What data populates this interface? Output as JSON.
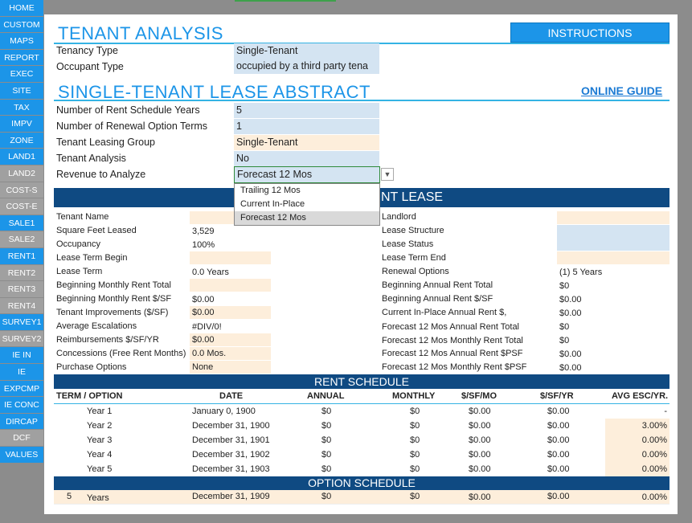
{
  "nav": [
    "HOME",
    "CUSTOM",
    "MAPS",
    "REPORT",
    "EXEC",
    "SITE",
    "TAX",
    "IMPV",
    "ZONE",
    "LAND1",
    "LAND2",
    "COST-S",
    "COST-E",
    "SALE1",
    "SALE2",
    "RENT1",
    "RENT2",
    "RENT3",
    "RENT4",
    "SURVEY1",
    "SURVEY2",
    "IE IN",
    "IE",
    "EXPCMP",
    "IE CONC",
    "DIRCAP",
    "DCF",
    "VALUES"
  ],
  "tenant_analysis": {
    "title": "TENANT ANALYSIS",
    "instructions": "INSTRUCTIONS",
    "tenancy_type_label": "Tenancy Type",
    "tenancy_type_value": "Single-Tenant",
    "occupant_type_label": "Occupant Type",
    "occupant_type_value": "occupied by a third party tena"
  },
  "abstract": {
    "title": "SINGLE-TENANT LEASE ABSTRACT",
    "online_guide": "ONLINE GUIDE",
    "rows": [
      {
        "label": "Number of Rent Schedule Years",
        "value": "5"
      },
      {
        "label": "Number of Renewal Option Terms",
        "value": "1"
      },
      {
        "label": "Tenant Leasing Group",
        "value": "Single-Tenant"
      },
      {
        "label": "Tenant Analysis",
        "value": "No"
      }
    ],
    "revenue_label": "Revenue to Analyze",
    "revenue_value": "Forecast 12 Mos",
    "dropdown_options": [
      "Trailing 12 Mos",
      "Current In-Place",
      "Forecast 12 Mos"
    ]
  },
  "current_lease": {
    "band": "NT LEASE",
    "left": [
      {
        "label": "Tenant Name",
        "value": ""
      },
      {
        "label": "Square Feet Leased",
        "value": "3,529"
      },
      {
        "label": "Occupancy",
        "value": "100%"
      },
      {
        "label": "Lease Term Begin",
        "value": ""
      },
      {
        "label": "Lease Term",
        "value": "0.0 Years"
      },
      {
        "label": "Beginning Monthly Rent Total",
        "value": ""
      },
      {
        "label": "Beginning Monthly Rent $/SF",
        "value": "$0.00"
      },
      {
        "label": "Tenant Improvements ($/SF)",
        "value": "$0.00"
      },
      {
        "label": "Average Escalations",
        "value": "#DIV/0!"
      },
      {
        "label": "Reimbursements $/SF/YR",
        "value": "$0.00"
      },
      {
        "label": "Concessions (Free Rent Months)",
        "value": "0.0 Mos."
      },
      {
        "label": "Purchase Options",
        "value": "None"
      }
    ],
    "right": [
      {
        "label": "Landlord",
        "value": ""
      },
      {
        "label": "Lease Structure",
        "value": ""
      },
      {
        "label": "Lease Status",
        "value": ""
      },
      {
        "label": "Lease Term End",
        "value": ""
      },
      {
        "label": "Renewal Options",
        "value": "(1) 5 Years"
      },
      {
        "label": "Beginning Annual Rent Total",
        "value": "$0"
      },
      {
        "label": "Beginning Annual Rent $/SF",
        "value": "$0.00"
      },
      {
        "label": "Current In-Place Annual Rent $,",
        "value": "$0.00"
      },
      {
        "label": "Forecast 12 Mos Annual Rent Total",
        "value": "$0"
      },
      {
        "label": "Forecast 12 Mos Monthly Rent Total",
        "value": "$0"
      },
      {
        "label": "Forecast 12 Mos Annual Rent $PSF",
        "value": "$0.00"
      },
      {
        "label": "Forecast 12 Mos Monthly Rent $PSF",
        "value": "$0.00"
      }
    ]
  },
  "rent_schedule": {
    "band": "RENT SCHEDULE",
    "headers": [
      "TERM / OPTION",
      "DATE",
      "ANNUAL",
      "MONTHLY",
      "$/SF/MO",
      "$/SF/YR",
      "AVG ESC/YR."
    ],
    "rows": [
      {
        "term": "Year 1",
        "date": "January 0, 1900",
        "annual": "$0",
        "monthly": "$0",
        "sfmo": "$0.00",
        "sfyr": "$0.00",
        "esc": "-"
      },
      {
        "term": "Year 2",
        "date": "December 31, 1900",
        "annual": "$0",
        "monthly": "$0",
        "sfmo": "$0.00",
        "sfyr": "$0.00",
        "esc": "3.00%"
      },
      {
        "term": "Year 3",
        "date": "December 31, 1901",
        "annual": "$0",
        "monthly": "$0",
        "sfmo": "$0.00",
        "sfyr": "$0.00",
        "esc": "0.00%"
      },
      {
        "term": "Year 4",
        "date": "December 31, 1902",
        "annual": "$0",
        "monthly": "$0",
        "sfmo": "$0.00",
        "sfyr": "$0.00",
        "esc": "0.00%"
      },
      {
        "term": "Year 5",
        "date": "December 31, 1903",
        "annual": "$0",
        "monthly": "$0",
        "sfmo": "$0.00",
        "sfyr": "$0.00",
        "esc": "0.00%"
      }
    ]
  },
  "option_schedule": {
    "band": "OPTION SCHEDULE",
    "row": {
      "num": "5",
      "term": "Years",
      "date": "December 31, 1909",
      "annual": "$0",
      "monthly": "$0",
      "sfmo": "$0.00",
      "sfyr": "$0.00",
      "esc": "0.00%"
    }
  },
  "colors": {
    "accent": "#1c95e8",
    "band": "#0f4a82",
    "input_blue": "#d4e4f2",
    "input_peach": "#fdeedb"
  }
}
